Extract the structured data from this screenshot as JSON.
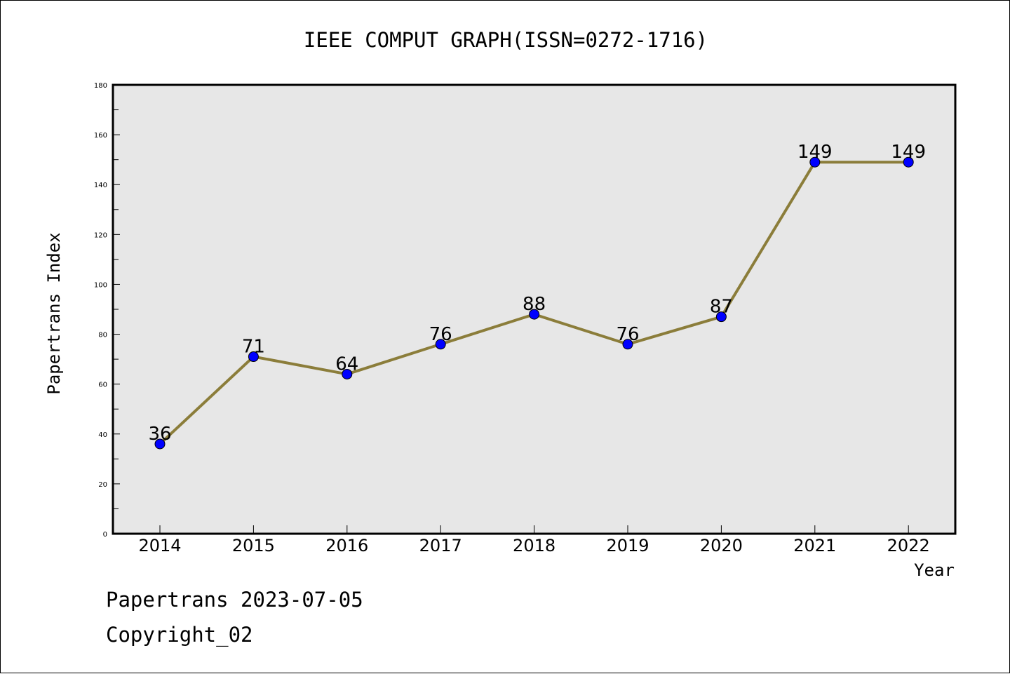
{
  "chart_data": {
    "type": "line",
    "title": "IEEE COMPUT GRAPH(ISSN=0272-1716)",
    "xlabel": "Year",
    "ylabel": "Papertrans Index",
    "categories": [
      "2014",
      "2015",
      "2016",
      "2017",
      "2018",
      "2019",
      "2020",
      "2021",
      "2022"
    ],
    "series": [
      {
        "values": [
          36,
          71,
          64,
          76,
          88,
          76,
          87,
          149,
          149
        ]
      }
    ],
    "data_labels": [
      "36",
      "71",
      "64",
      "76",
      "88",
      "76",
      "87",
      "149",
      "149"
    ],
    "ylim": [
      0,
      180
    ],
    "yticks": [
      0,
      20,
      40,
      60,
      80,
      100,
      120,
      140,
      160,
      180
    ],
    "ytick_labels": [
      "0",
      "20",
      "40",
      "60",
      "80",
      "100",
      "120",
      "140",
      "160",
      "180"
    ],
    "grid": false,
    "legend": "none",
    "colors": {
      "line": "#8B7D3A",
      "marker": "#0000FF",
      "plot_background": "#E7E7E7"
    }
  },
  "footer": {
    "line1": "Papertrans 2023-07-05",
    "line2": "Copyright_02"
  }
}
